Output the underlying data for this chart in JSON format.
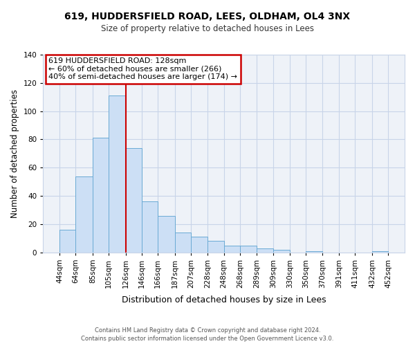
{
  "title1": "619, HUDDERSFIELD ROAD, LEES, OLDHAM, OL4 3NX",
  "title2": "Size of property relative to detached houses in Lees",
  "xlabel": "Distribution of detached houses by size in Lees",
  "ylabel": "Number of detached properties",
  "bar_left_edges": [
    44,
    64,
    85,
    105,
    126,
    146,
    166,
    187,
    207,
    228,
    248,
    268,
    289,
    309,
    330,
    350,
    370,
    391,
    411,
    432
  ],
  "bar_widths": [
    20,
    21,
    20,
    21,
    20,
    20,
    21,
    20,
    21,
    20,
    20,
    21,
    20,
    21,
    20,
    20,
    21,
    20,
    21,
    20
  ],
  "bar_heights": [
    16,
    54,
    81,
    111,
    74,
    36,
    26,
    14,
    11,
    8,
    5,
    5,
    3,
    2,
    0,
    1,
    0,
    0,
    0,
    1
  ],
  "tick_labels": [
    "44sqm",
    "64sqm",
    "85sqm",
    "105sqm",
    "126sqm",
    "146sqm",
    "166sqm",
    "187sqm",
    "207sqm",
    "228sqm",
    "248sqm",
    "268sqm",
    "289sqm",
    "309sqm",
    "330sqm",
    "350sqm",
    "370sqm",
    "391sqm",
    "411sqm",
    "432sqm",
    "452sqm"
  ],
  "bar_color": "#ccdff5",
  "bar_edge_color": "#6aaad4",
  "ylim": [
    0,
    140
  ],
  "yticks": [
    0,
    20,
    40,
    60,
    80,
    100,
    120,
    140
  ],
  "vline_x": 126,
  "vline_color": "#cc0000",
  "annotation_line1": "619 HUDDERSFIELD ROAD: 128sqm",
  "annotation_line2": "← 60% of detached houses are smaller (266)",
  "annotation_line3": "40% of semi-detached houses are larger (174) →",
  "annotation_box_color": "#ffffff",
  "annotation_border_color": "#cc0000",
  "footnote1": "Contains HM Land Registry data © Crown copyright and database right 2024.",
  "footnote2": "Contains public sector information licensed under the Open Government Licence v3.0.",
  "fig_bg_color": "#ffffff",
  "plot_bg_color": "#eef2f8",
  "grid_color": "#c8d4e8"
}
